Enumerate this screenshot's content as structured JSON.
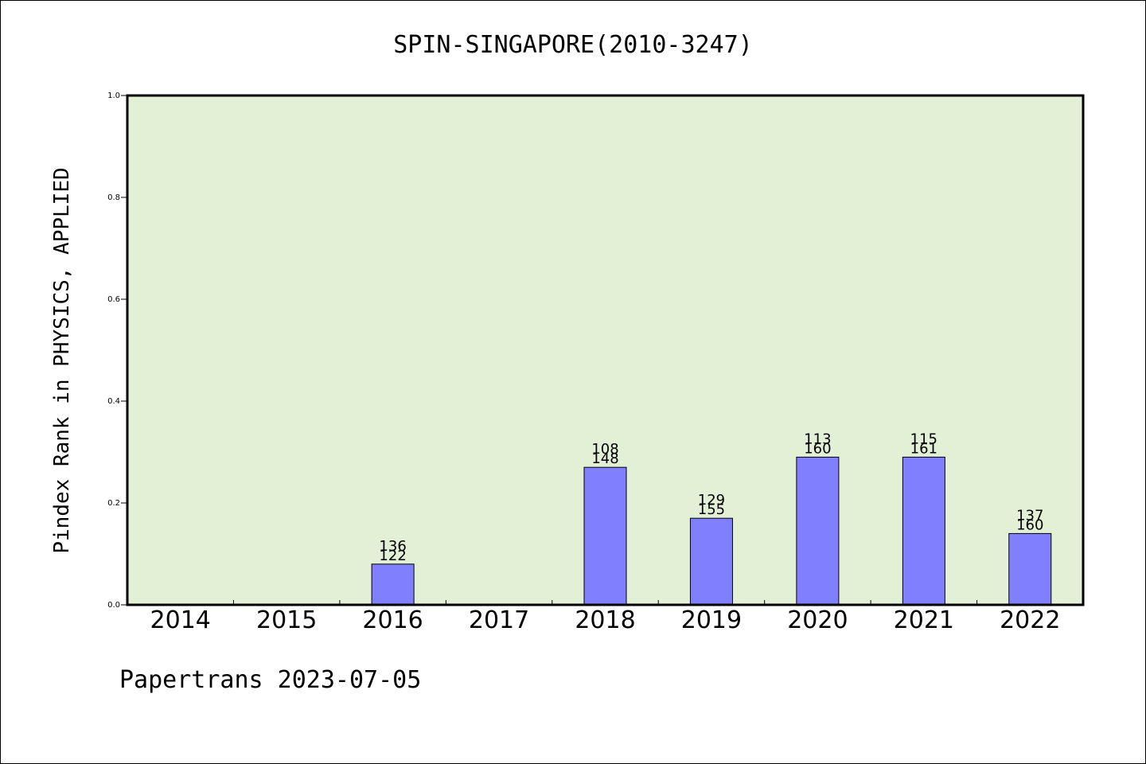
{
  "chart_data": {
    "type": "bar",
    "title": "SPIN-SINGAPORE(2010-3247)",
    "ylabel": "Pindex Rank in PHYSICS, APPLIED",
    "xlabel": "",
    "ylim": [
      0,
      1
    ],
    "yticks": [
      "0.0",
      "0.2",
      "0.4",
      "0.6",
      "0.8",
      "1.0"
    ],
    "categories": [
      "2014",
      "2015",
      "2016",
      "2017",
      "2018",
      "2019",
      "2020",
      "2021",
      "2022"
    ],
    "values": [
      null,
      null,
      0.08,
      null,
      0.27,
      0.17,
      0.29,
      0.29,
      0.14
    ],
    "labels_top": [
      "",
      "",
      "136",
      "",
      "108",
      "129",
      "113",
      "115",
      "137"
    ],
    "labels_bottom": [
      "",
      "",
      "122",
      "",
      "148",
      "155",
      "160",
      "161",
      "160"
    ],
    "grid": false,
    "colors": {
      "plot_background": "#e2f0d6",
      "bar_fill": "#8080ff",
      "bar_stroke": "#000000",
      "axis": "#000000"
    }
  },
  "footer": {
    "text": "Papertrans 2023-07-05"
  }
}
